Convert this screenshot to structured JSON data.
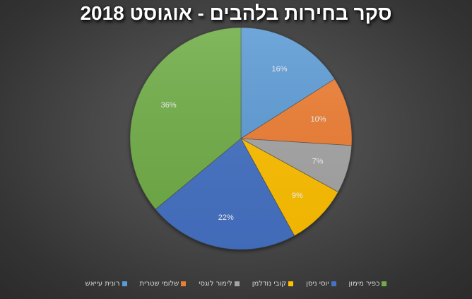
{
  "chart_data": {
    "type": "pie",
    "title": "סקר בחירות בלהבים - אוגוסט 2018",
    "categories": [
      "רונית עייאש",
      "שלומי שטרית",
      "לימור לוגסי",
      "קובי נודלמן",
      "יוסי ניסן",
      "כפיר מימון"
    ],
    "values": [
      16,
      10,
      7,
      9,
      22,
      36
    ],
    "labels": [
      "16%",
      "10%",
      "7%",
      "9%",
      "22%",
      "36%"
    ],
    "colors": [
      "#5B9BD5",
      "#ED7D31",
      "#A5A5A5",
      "#FFC000",
      "#4472C4",
      "#70AD47"
    ],
    "start_angle_deg": 0,
    "direction": "clockwise",
    "legend_position": "bottom",
    "data_labels": "percent"
  },
  "legend": {
    "items": [
      {
        "label": "רונית עייאש",
        "color": "#5B9BD5"
      },
      {
        "label": "שלומי שטרית",
        "color": "#ED7D31"
      },
      {
        "label": "לימור לוגסי",
        "color": "#A5A5A5"
      },
      {
        "label": "קובי נודלמן",
        "color": "#FFC000"
      },
      {
        "label": "יוסי ניסן",
        "color": "#4472C4"
      },
      {
        "label": "כפיר מימון",
        "color": "#70AD47"
      }
    ]
  }
}
